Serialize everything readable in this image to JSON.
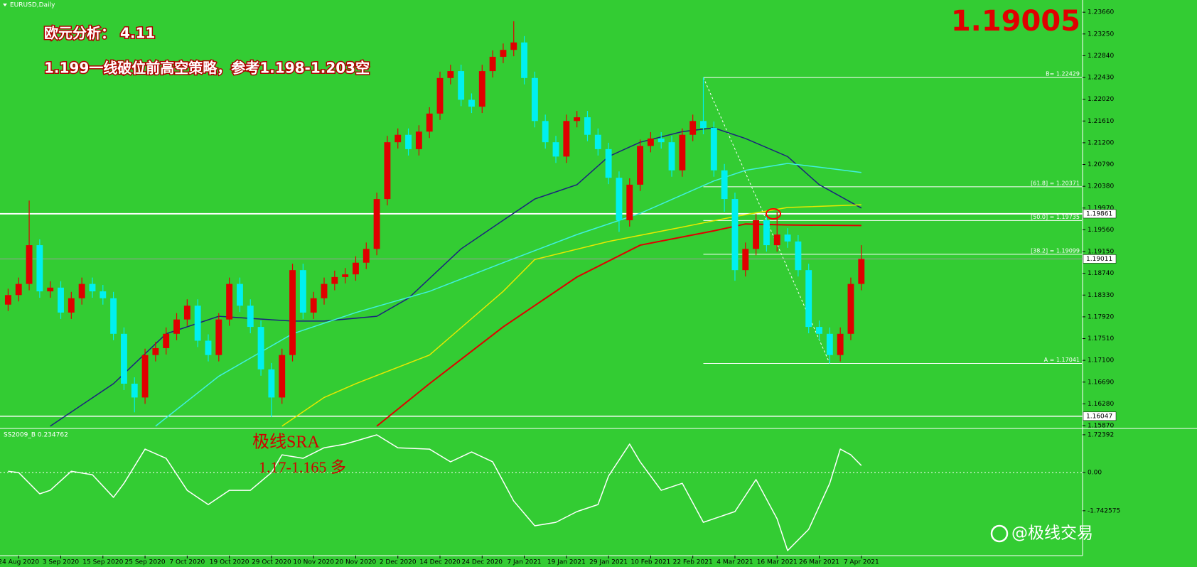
{
  "chart_data": [
    {
      "type": "candlestick",
      "title": "EURUSD,Daily",
      "annotations": [
        "欧元分析： 4.11",
        "1.199一线破位前高空策略，参考1.198-1.203空"
      ],
      "bid": 1.19005,
      "up_color": "#e00000",
      "down_color": "#00f0f0",
      "open": [
        1.1815,
        1.1833,
        1.1854,
        1.1927,
        1.184,
        1.1847,
        1.18,
        1.1827,
        1.1854,
        1.184,
        1.1827,
        1.176,
        1.1666,
        1.164,
        1.172,
        1.1733,
        1.176,
        1.1787,
        1.1813,
        1.1747,
        1.172,
        1.1787,
        1.1854,
        1.1813,
        1.1773,
        1.1693,
        1.164,
        1.172,
        1.188,
        1.18,
        1.1827,
        1.1854,
        1.1867,
        1.1872,
        1.1894,
        1.192,
        1.2014,
        1.2121,
        1.2135,
        1.2108,
        1.2141,
        1.2175,
        1.2242,
        1.2255,
        1.2201,
        1.2188,
        1.2255,
        1.2282,
        1.2295,
        1.2309,
        1.2242,
        1.2161,
        1.2121,
        1.2094,
        1.2161,
        1.2168,
        1.2135,
        1.2108,
        1.2054,
        1.1974,
        1.2041,
        1.2114,
        1.2128,
        1.2121,
        1.2068,
        1.2135,
        1.2161,
        1.2148,
        1.2068,
        1.2014,
        1.188,
        1.192,
        1.1974,
        1.1927,
        1.1947,
        1.1934,
        1.188,
        1.1773,
        1.176,
        1.172,
        1.176,
        1.1854
      ],
      "high": [
        1.1845,
        1.1866,
        1.2011,
        1.1938,
        1.1859,
        1.1859,
        1.1839,
        1.1866,
        1.1866,
        1.1852,
        1.1839,
        1.1772,
        1.1678,
        1.1732,
        1.1745,
        1.1772,
        1.1799,
        1.1825,
        1.1825,
        1.1759,
        1.1799,
        1.1866,
        1.1866,
        1.1825,
        1.1785,
        1.1705,
        1.1732,
        1.1892,
        1.1892,
        1.1839,
        1.1866,
        1.1879,
        1.1884,
        1.1906,
        1.1932,
        1.2026,
        1.2133,
        1.2147,
        1.2147,
        1.2153,
        1.2187,
        1.2254,
        1.2267,
        1.2267,
        1.2213,
        1.2267,
        1.2294,
        1.2307,
        1.2349,
        1.2321,
        1.2254,
        1.2173,
        1.2133,
        1.2173,
        1.218,
        1.218,
        1.2147,
        1.212,
        1.2066,
        1.2053,
        1.2126,
        1.214,
        1.214,
        1.2133,
        1.2147,
        1.2173,
        1.2243,
        1.216,
        1.208,
        1.2026,
        1.1932,
        1.1986,
        1.1986,
        1.199,
        1.1959,
        1.1946,
        1.1892,
        1.1785,
        1.1772,
        1.1772,
        1.1866,
        1.1927
      ],
      "low": [
        1.1803,
        1.1821,
        1.1842,
        1.1828,
        1.1828,
        1.1788,
        1.1788,
        1.1815,
        1.1828,
        1.1815,
        1.1748,
        1.1654,
        1.1612,
        1.1628,
        1.1708,
        1.1721,
        1.1748,
        1.1775,
        1.1735,
        1.1708,
        1.1708,
        1.1775,
        1.1801,
        1.1761,
        1.1681,
        1.1603,
        1.1628,
        1.1708,
        1.1788,
        1.1788,
        1.1815,
        1.1842,
        1.1855,
        1.186,
        1.1882,
        1.1908,
        1.2002,
        1.2109,
        1.2096,
        1.2096,
        1.2129,
        1.2163,
        1.223,
        1.2189,
        1.2176,
        1.2176,
        1.2243,
        1.227,
        1.2283,
        1.223,
        1.2149,
        1.2109,
        1.2082,
        1.2082,
        1.2149,
        1.2123,
        1.2096,
        1.2042,
        1.1952,
        1.1962,
        1.2029,
        1.2102,
        1.2109,
        1.2056,
        1.2056,
        1.2123,
        1.2136,
        1.2056,
        1.199,
        1.186,
        1.1868,
        1.1908,
        1.1915,
        1.1915,
        1.1922,
        1.1868,
        1.1761,
        1.1748,
        1.1704,
        1.1708,
        1.1748,
        1.1842
      ],
      "close": [
        1.1833,
        1.1854,
        1.1927,
        1.184,
        1.1847,
        1.18,
        1.1827,
        1.1854,
        1.184,
        1.1827,
        1.176,
        1.1666,
        1.164,
        1.172,
        1.1733,
        1.176,
        1.1787,
        1.1813,
        1.1747,
        1.172,
        1.1787,
        1.1854,
        1.1813,
        1.1773,
        1.1693,
        1.164,
        1.172,
        1.188,
        1.18,
        1.1827,
        1.1854,
        1.1867,
        1.1872,
        1.1894,
        1.192,
        1.2014,
        1.2121,
        1.2135,
        1.2108,
        1.2141,
        1.2175,
        1.2242,
        1.2255,
        1.2201,
        1.2188,
        1.2255,
        1.2282,
        1.2295,
        1.2309,
        1.2242,
        1.2161,
        1.2121,
        1.2094,
        1.2161,
        1.2168,
        1.2135,
        1.2108,
        1.2054,
        1.1974,
        1.2041,
        1.2114,
        1.2128,
        1.2121,
        1.2068,
        1.2135,
        1.2161,
        1.2148,
        1.2068,
        1.2014,
        1.188,
        1.192,
        1.1974,
        1.1927,
        1.1947,
        1.1934,
        1.188,
        1.1773,
        1.176,
        1.172,
        1.176,
        1.1854,
        1.1901
      ],
      "overlays": [
        {
          "color": "#1a237e",
          "x": [
            4,
            10,
            15,
            20,
            23,
            27,
            30,
            35,
            38,
            43,
            47,
            50,
            54,
            57,
            60,
            64,
            67,
            70,
            74,
            77,
            81
          ],
          "values": [
            1.1586,
            1.1666,
            1.176,
            1.1793,
            1.1789,
            1.1784,
            1.1784,
            1.1793,
            1.1827,
            1.192,
            1.1974,
            1.2014,
            1.2041,
            1.2094,
            1.2121,
            1.2141,
            1.2148,
            1.2128,
            1.2094,
            1.2041,
            1.1997
          ]
        },
        {
          "color": "#40f0e0",
          "x": [
            14,
            20,
            27,
            33,
            40,
            47,
            54,
            60,
            67,
            70,
            74,
            77,
            81
          ],
          "values": [
            1.1586,
            1.168,
            1.176,
            1.18,
            1.184,
            1.1894,
            1.1947,
            1.1987,
            1.2048,
            1.2068,
            1.2081,
            1.2074,
            1.2064
          ]
        },
        {
          "color": "#e8e800",
          "x": [
            26,
            30,
            33,
            40,
            47,
            50,
            57,
            64,
            69,
            74,
            81
          ],
          "values": [
            1.1586,
            1.164,
            1.1666,
            1.172,
            1.184,
            1.19,
            1.1934,
            1.1961,
            1.1981,
            1.1998,
            1.2003
          ]
        },
        {
          "color": "#e00000",
          "x": [
            35,
            40,
            47,
            54,
            60,
            67,
            70,
            74,
            81
          ],
          "values": [
            1.1586,
            1.1666,
            1.1773,
            1.1867,
            1.1927,
            1.1954,
            1.1967,
            1.1965,
            1.1964
          ]
        }
      ],
      "levels_start": 66,
      "levels": [
        {
          "value": 1.22429,
          "label": "B= 1.22429"
        },
        {
          "value": 1.20371,
          "label": "[61.8] = 1.20371"
        },
        {
          "value": 1.19735,
          "label": "[50.0] = 1.19735"
        },
        {
          "value": 1.19099,
          "label": "[38.2] = 1.19099"
        },
        {
          "value": 1.17041,
          "label": "A = 1.17041"
        }
      ],
      "trendline": {
        "x": [
          66,
          78
        ],
        "values": [
          1.22429,
          1.17041
        ]
      },
      "hlines": [
        1.19861,
        1.16047
      ],
      "last_price": 1.19011,
      "xlim": [
        -0.5,
        102
      ],
      "xticks": [
        {
          "value": 1,
          "label": "24 Aug 2020"
        },
        {
          "value": 5,
          "label": "3 Sep 2020"
        },
        {
          "value": 9,
          "label": "15 Sep 2020"
        },
        {
          "value": 13,
          "label": "25 Sep 2020"
        },
        {
          "value": 17,
          "label": "7 Oct 2020"
        },
        {
          "value": 21,
          "label": "19 Oct 2020"
        },
        {
          "value": 25,
          "label": "29 Oct 2020"
        },
        {
          "value": 29,
          "label": "10 Nov 2020"
        },
        {
          "value": 33,
          "label": "20 Nov 2020"
        },
        {
          "value": 37,
          "label": "2 Dec 2020"
        },
        {
          "value": 41,
          "label": "14 Dec 2020"
        },
        {
          "value": 45,
          "label": "24 Dec 2020"
        },
        {
          "value": 49,
          "label": "7 Jan 2021"
        },
        {
          "value": 53,
          "label": "19 Jan 2021"
        },
        {
          "value": 57,
          "label": "29 Jan 2021"
        },
        {
          "value": 61,
          "label": "10 Feb 2021"
        },
        {
          "value": 65,
          "label": "22 Feb 2021"
        },
        {
          "value": 69,
          "label": "4 Mar 2021"
        },
        {
          "value": 73,
          "label": "16 Mar 2021"
        },
        {
          "value": 77,
          "label": "26 Mar 2021"
        },
        {
          "value": 81,
          "label": "7 Apr 2021"
        }
      ],
      "ylim": [
        1.1583,
        1.2389
      ],
      "yticks": [
        {
          "value": 1.2366,
          "label": "1.23660"
        },
        {
          "value": 1.2325,
          "label": "1.23250"
        },
        {
          "value": 1.2284,
          "label": "1.22840"
        },
        {
          "value": 1.2243,
          "label": "1.22430"
        },
        {
          "value": 1.2202,
          "label": "1.22020"
        },
        {
          "value": 1.2161,
          "label": "1.21610"
        },
        {
          "value": 1.212,
          "label": "1.21200"
        },
        {
          "value": 1.2079,
          "label": "1.20790"
        },
        {
          "value": 1.2038,
          "label": "1.20380"
        },
        {
          "value": 1.1997,
          "label": "1.19970"
        },
        {
          "value": 1.1956,
          "label": "1.19560"
        },
        {
          "value": 1.1915,
          "label": "1.19150"
        },
        {
          "value": 1.1874,
          "label": "1.18740"
        },
        {
          "value": 1.1833,
          "label": "1.18330"
        },
        {
          "value": 1.1792,
          "label": "1.17920"
        },
        {
          "value": 1.1751,
          "label": "1.17510"
        },
        {
          "value": 1.171,
          "label": "1.17100"
        },
        {
          "value": 1.1669,
          "label": "1.16690"
        },
        {
          "value": 1.1628,
          "label": "1.16280"
        },
        {
          "value": 1.1587,
          "label": "1.15870"
        }
      ]
    },
    {
      "type": "line",
      "title": "SS2009_B 0.234762",
      "annotations": [
        "极线SRA",
        "1.17-1.165 多"
      ],
      "color": "#ffffff",
      "x": [
        0,
        1,
        3,
        4,
        6,
        8,
        10,
        11,
        13,
        15,
        17,
        19,
        21,
        23,
        25,
        26,
        28,
        30,
        32,
        35,
        37,
        40,
        42,
        44,
        46,
        48,
        50,
        52,
        54,
        56,
        57,
        59,
        60,
        62,
        64,
        66,
        69,
        71,
        73,
        74,
        76,
        78,
        79,
        80,
        81
      ],
      "values": [
        0.06,
        0,
        -0.97,
        -0.81,
        0.06,
        -0.1,
        -1.13,
        -0.49,
        1.07,
        0.65,
        -0.81,
        -1.46,
        -0.81,
        -0.81,
        0,
        0.81,
        0.65,
        1.13,
        1.3,
        1.72,
        1.13,
        1.07,
        0.49,
        0.94,
        0.49,
        -1.3,
        -2.43,
        -2.27,
        -1.78,
        -1.46,
        -0.16,
        1.3,
        0.49,
        -0.81,
        -0.49,
        -2.27,
        -1.78,
        -0.32,
        -2.11,
        -3.56,
        -2.59,
        -0.49,
        1.07,
        0.81,
        0.32
      ],
      "xlim": [
        -0.5,
        102
      ],
      "ylim": [
        -3.79,
        1.98
      ],
      "yticks": [
        1.72392,
        {
          "value": 0,
          "label": "0.00"
        },
        -1.742575
      ]
    }
  ],
  "watermark": "@极线交易"
}
